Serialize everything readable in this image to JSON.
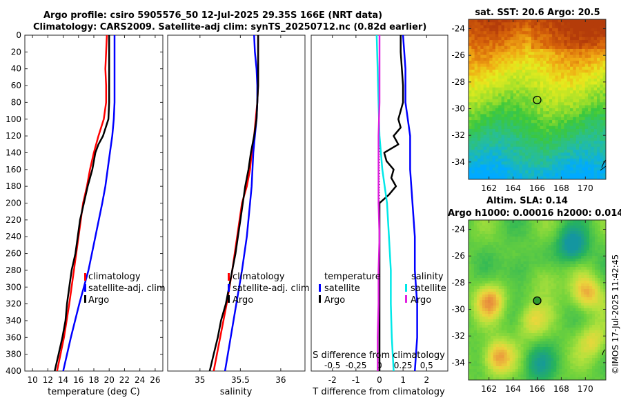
{
  "header": {
    "line1": "Argo profile: csiro 5905576_50 12-Jul-2025 29.35S 166E (NRT data)",
    "line2": "Climatology: CARS2009. Satellite-adj clim: synTS_20250712.nc (0.82d earlier)"
  },
  "copyright": "©IMOS 17-Jul-2025 11:42:45",
  "colors": {
    "climatology": "#ff0000",
    "satellite": "#0000ff",
    "argo": "#000000",
    "salinity_satellite": "#00e8e8",
    "salinity_argo": "#e020e0"
  },
  "chart_data": [
    {
      "type": "line",
      "id": "temperature-profile",
      "xlabel": "temperature (deg C)",
      "ylabel": "",
      "xlim": [
        9,
        27
      ],
      "ylim": [
        400,
        0
      ],
      "xticks": [
        "10",
        "12",
        "14",
        "16",
        "18",
        "20",
        "22",
        "24",
        "26"
      ],
      "xtick_values": [
        10,
        12,
        14,
        16,
        18,
        20,
        22,
        24,
        26
      ],
      "yticks": [
        "0",
        "20",
        "40",
        "60",
        "80",
        "100",
        "120",
        "140",
        "160",
        "180",
        "200",
        "220",
        "240",
        "260",
        "280",
        "300",
        "320",
        "340",
        "360",
        "380",
        "400"
      ],
      "legend": [
        "climatology",
        "satellite-adj. clim",
        "Argo"
      ],
      "series": [
        {
          "name": "climatology",
          "depth": [
            0,
            20,
            40,
            60,
            80,
            100,
            120,
            140,
            160,
            180,
            200,
            240,
            280,
            320,
            360,
            400
          ],
          "values": [
            19.7,
            19.6,
            19.5,
            19.6,
            19.6,
            19.3,
            18.6,
            18.0,
            17.5,
            17.1,
            16.6,
            16.0,
            15.4,
            14.8,
            14.1,
            13.2
          ]
        },
        {
          "name": "satellite-adj. clim",
          "depth": [
            0,
            20,
            40,
            60,
            80,
            100,
            120,
            140,
            160,
            180,
            200,
            240,
            280,
            320,
            360,
            400
          ],
          "values": [
            20.7,
            20.7,
            20.7,
            20.7,
            20.7,
            20.6,
            20.4,
            20.1,
            19.8,
            19.5,
            19.1,
            18.2,
            17.3,
            16.1,
            15.0,
            14.0
          ]
        },
        {
          "name": "Argo",
          "depth": [
            0,
            20,
            40,
            60,
            80,
            100,
            120,
            130,
            140,
            150,
            160,
            180,
            200,
            220,
            240,
            260,
            280,
            300,
            320,
            340,
            360,
            380,
            400
          ],
          "values": [
            20.0,
            20.0,
            20.0,
            20.0,
            20.0,
            19.9,
            19.2,
            18.6,
            18.2,
            18.0,
            17.8,
            17.2,
            16.7,
            16.2,
            15.9,
            15.6,
            15.1,
            14.8,
            14.5,
            14.3,
            13.9,
            13.4,
            12.9
          ]
        }
      ]
    },
    {
      "type": "line",
      "id": "salinity-profile",
      "xlabel": "salinity",
      "xlim": [
        34.6,
        36.3
      ],
      "ylim": [
        400,
        0
      ],
      "xticks": [
        "35",
        "35.5",
        "36"
      ],
      "xtick_values": [
        35,
        35.5,
        36
      ],
      "legend": [
        "climatology",
        "satellite-adj. clim",
        "Argo"
      ],
      "series": [
        {
          "name": "climatology",
          "depth": [
            0,
            20,
            40,
            60,
            80,
            100,
            120,
            140,
            160,
            180,
            200,
            240,
            280,
            320,
            360,
            400
          ],
          "values": [
            35.72,
            35.72,
            35.72,
            35.72,
            35.71,
            35.69,
            35.67,
            35.64,
            35.62,
            35.58,
            35.52,
            35.46,
            35.4,
            35.33,
            35.25,
            35.17
          ]
        },
        {
          "name": "satellite-adj. clim",
          "depth": [
            0,
            20,
            40,
            60,
            80,
            100,
            120,
            140,
            160,
            180,
            200,
            240,
            280,
            320,
            360,
            400
          ],
          "values": [
            35.67,
            35.68,
            35.7,
            35.71,
            35.71,
            35.7,
            35.68,
            35.66,
            35.65,
            35.64,
            35.62,
            35.58,
            35.52,
            35.45,
            35.38,
            35.31
          ]
        },
        {
          "name": "Argo",
          "depth": [
            0,
            20,
            40,
            60,
            80,
            100,
            120,
            140,
            160,
            180,
            200,
            220,
            240,
            260,
            280,
            300,
            320,
            340,
            360,
            380,
            400
          ],
          "values": [
            35.72,
            35.72,
            35.72,
            35.72,
            35.71,
            35.7,
            35.67,
            35.63,
            35.6,
            35.56,
            35.53,
            35.5,
            35.47,
            35.44,
            35.4,
            35.36,
            35.32,
            35.26,
            35.22,
            35.17,
            35.12
          ]
        }
      ]
    },
    {
      "type": "line",
      "id": "difference-profile",
      "xlabel": "T difference from climatology",
      "top_label": "S difference from climatology",
      "xlim": [
        -2.9,
        2.9
      ],
      "ylim": [
        400,
        0
      ],
      "xticks": [
        "-2",
        "-1",
        "0",
        "1",
        "2"
      ],
      "xtick_values": [
        -2,
        -1,
        0,
        1,
        2
      ],
      "s_ticks": [
        "-0.5",
        "-0.25",
        "0",
        "0.25",
        "0.5"
      ],
      "s_tick_values": [
        -0.5,
        -0.25,
        0,
        0.25,
        0.5
      ],
      "legend_temperature": "temperature",
      "legend_salinity": "salinity",
      "legend_items": [
        "satellite",
        "Argo"
      ],
      "series": [
        {
          "name": "temperature satellite",
          "depth": [
            0,
            40,
            80,
            100,
            120,
            140,
            160,
            200,
            240,
            280,
            320,
            360,
            400
          ],
          "values": [
            1.0,
            1.1,
            1.1,
            1.2,
            1.3,
            1.3,
            1.3,
            1.4,
            1.5,
            1.5,
            1.6,
            1.6,
            1.5
          ]
        },
        {
          "name": "temperature Argo",
          "depth": [
            0,
            20,
            60,
            80,
            100,
            110,
            120,
            130,
            140,
            150,
            160,
            170,
            180,
            190,
            200,
            220,
            240,
            280,
            320,
            360,
            400
          ],
          "values": [
            0.9,
            0.9,
            1.0,
            1.0,
            0.8,
            0.9,
            0.6,
            0.8,
            0.2,
            0.3,
            0.6,
            0.5,
            0.7,
            0.4,
            0.0,
            0.0,
            0.0,
            0.0,
            0.0,
            0.0,
            0.0
          ]
        },
        {
          "name": "salinity satellite",
          "depth": [
            0,
            40,
            80,
            120,
            160,
            200,
            240,
            280,
            320,
            360,
            400
          ],
          "values": [
            -0.03,
            -0.02,
            -0.01,
            0.0,
            0.03,
            0.08,
            0.1,
            0.12,
            0.12,
            0.13,
            0.15
          ]
        },
        {
          "name": "salinity Argo",
          "depth": [
            0,
            40,
            80,
            120,
            140,
            160,
            200,
            240,
            280,
            320,
            360,
            380,
            400
          ],
          "values": [
            0.0,
            0.0,
            0.0,
            -0.01,
            -0.01,
            -0.01,
            -0.01,
            0.0,
            -0.01,
            -0.01,
            -0.02,
            -0.02,
            -0.02
          ]
        }
      ]
    },
    {
      "type": "heatmap",
      "id": "sst-map",
      "title": "sat. SST: 20.6 Argo: 20.5",
      "xlim": [
        160.3,
        171.7
      ],
      "ylim": [
        -35.3,
        -23.3
      ],
      "xticks": [
        "162",
        "164",
        "166",
        "168",
        "170"
      ],
      "xtick_values": [
        162,
        164,
        166,
        168,
        170
      ],
      "yticks": [
        "-24",
        "-26",
        "-28",
        "-30",
        "-32",
        "-34"
      ],
      "ytick_values": [
        -24,
        -26,
        -28,
        -30,
        -32,
        -34
      ],
      "argo_position": [
        166.0,
        -29.35
      ]
    },
    {
      "type": "heatmap",
      "id": "sla-map",
      "title": "Altim. SLA: 0.14",
      "subtitle": "Argo h1000: 0.00016 h2000: 0.014",
      "xlim": [
        160.3,
        171.7
      ],
      "ylim": [
        -35.3,
        -23.3
      ],
      "xticks": [
        "162",
        "164",
        "166",
        "168",
        "170"
      ],
      "xtick_values": [
        162,
        164,
        166,
        168,
        170
      ],
      "yticks": [
        "-24",
        "-26",
        "-28",
        "-30",
        "-32",
        "-34"
      ],
      "ytick_values": [
        -24,
        -26,
        -28,
        -30,
        -32,
        -34
      ],
      "argo_position": [
        166.0,
        -29.35
      ]
    }
  ]
}
